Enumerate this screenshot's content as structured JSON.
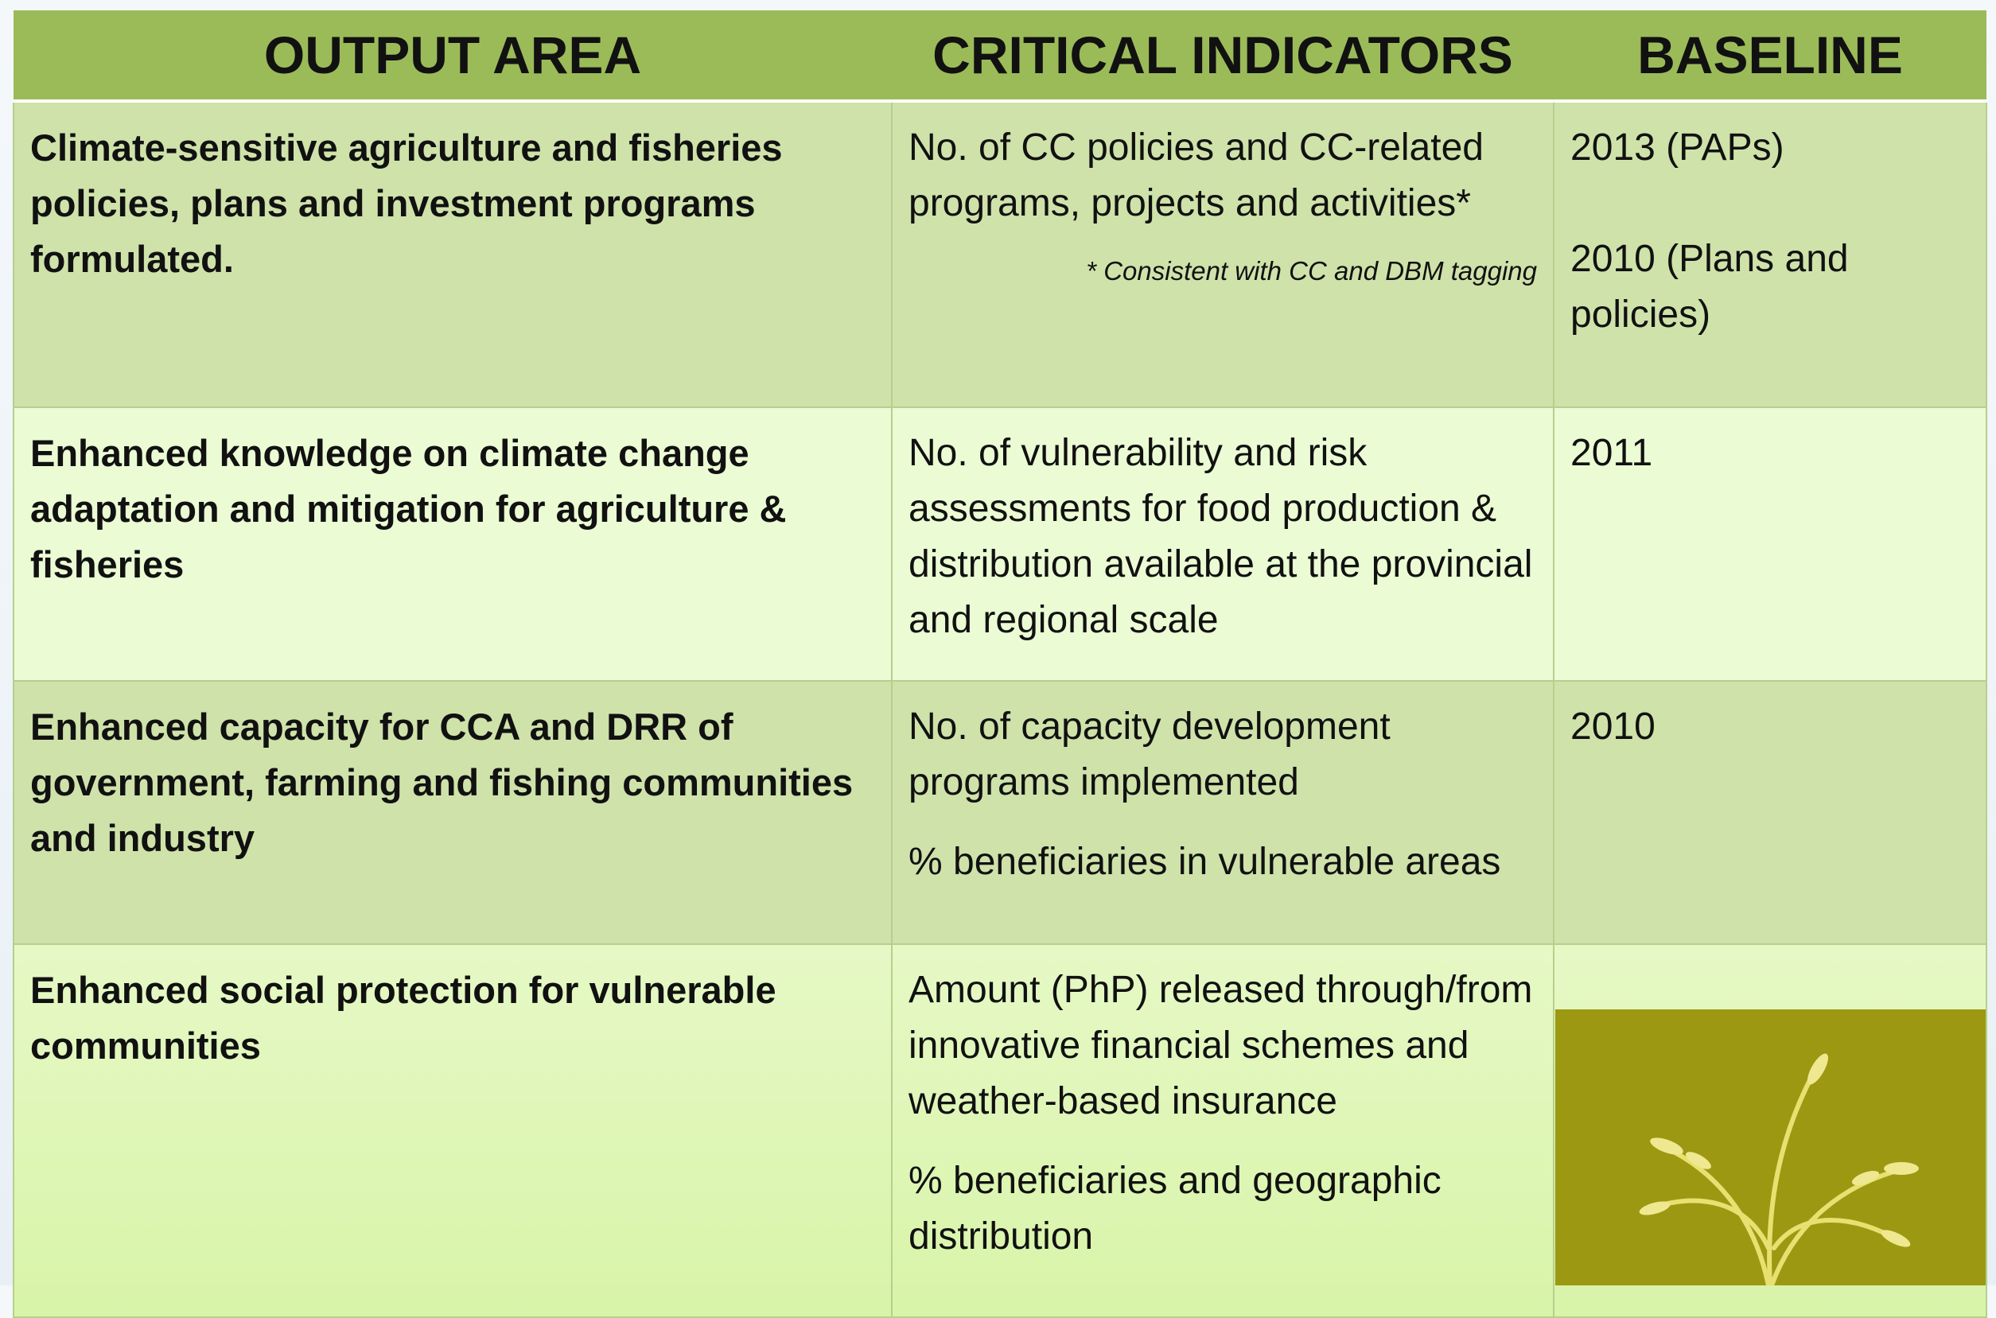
{
  "table": {
    "header": [
      "OUTPUT AREA",
      "CRITICAL INDICATORS",
      "BASELINE"
    ],
    "rows": [
      {
        "output_area": "Climate-sensitive agriculture and fisheries policies, plans and investment programs formulated.",
        "indicators": [
          "No. of CC policies and CC-related programs, projects and activities*"
        ],
        "note": "* Consistent with CC and DBM tagging",
        "baseline": [
          "2013 (PAPs)",
          "2010 (Plans and policies)"
        ]
      },
      {
        "output_area": "Enhanced knowledge on climate change adaptation and mitigation for agriculture & fisheries",
        "indicators": [
          "No. of vulnerability and risk assessments for food production & distribution available at the provincial and regional scale"
        ],
        "baseline": [
          "2011"
        ]
      },
      {
        "output_area": "Enhanced capacity for CCA and DRR of government, farming and fishing communities and industry",
        "indicators": [
          "No. of capacity development programs implemented",
          "% beneficiaries in vulnerable areas"
        ],
        "baseline": [
          "2010"
        ]
      },
      {
        "output_area": "Enhanced social protection for vulnerable communities",
        "indicators": [
          "Amount (PhP) released through/from innovative financial schemes and weather-based insurance",
          "% beneficiaries and geographic distribution"
        ],
        "baseline": []
      }
    ]
  }
}
